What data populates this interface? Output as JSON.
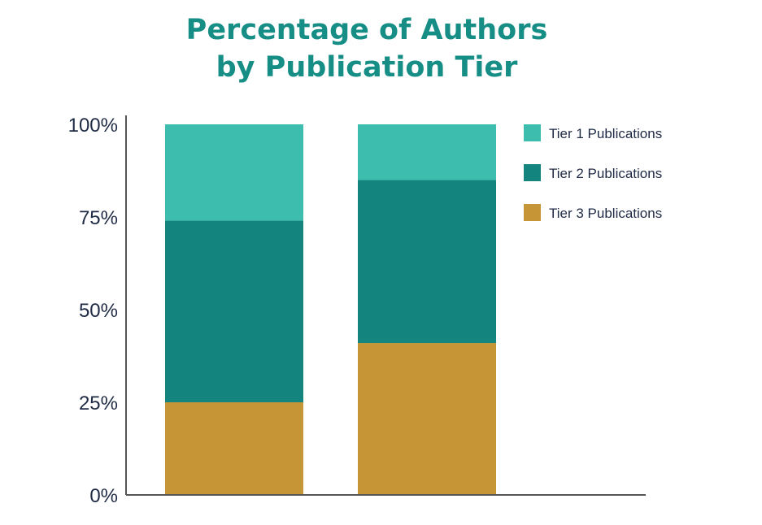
{
  "chart_data": {
    "type": "bar",
    "stacked": true,
    "title_lines": [
      "Percentage of Authors",
      "by Publication Tier"
    ],
    "categories": [
      "",
      ""
    ],
    "series": [
      {
        "name": "Tier 3 Publications",
        "values": [
          25,
          41
        ],
        "color": "#c69636"
      },
      {
        "name": "Tier 2 Publications",
        "values": [
          49,
          44
        ],
        "color": "#13857e"
      },
      {
        "name": "Tier 1 Publications",
        "values": [
          26,
          15
        ],
        "color": "#3dbdad"
      }
    ],
    "legend_order": [
      "Tier 1 Publications",
      "Tier 2 Publications",
      "Tier 3 Publications"
    ],
    "y_ticks": [
      "0%",
      "25%",
      "50%",
      "75%",
      "100%"
    ],
    "y_tick_values": [
      0,
      25,
      50,
      75,
      100
    ],
    "ylim": [
      0,
      100
    ],
    "grid": false,
    "legend_position": "top-right"
  }
}
